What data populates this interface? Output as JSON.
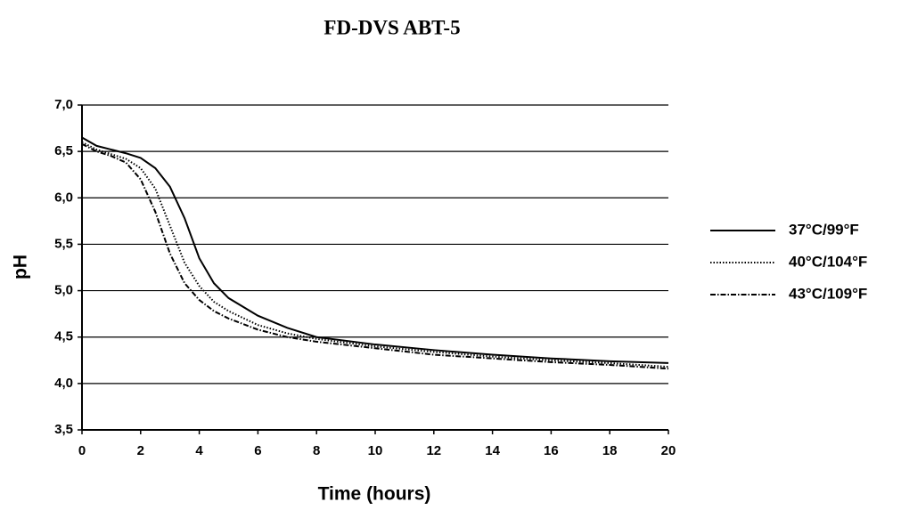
{
  "chart_data": {
    "type": "line",
    "title": "FD-DVS ABT-5",
    "x_label": "Time (hours)",
    "y_label": "pH",
    "x": [
      0,
      0.5,
      1,
      1.5,
      2,
      2.5,
      3,
      3.5,
      4,
      4.5,
      5,
      6,
      7,
      8,
      10,
      12,
      14,
      16,
      18,
      20
    ],
    "series": [
      {
        "name": "37°C/99°F",
        "color": "#000000",
        "style": "solid",
        "values": [
          6.65,
          6.56,
          6.52,
          6.48,
          6.43,
          6.32,
          6.12,
          5.78,
          5.35,
          5.08,
          4.92,
          4.73,
          4.6,
          4.5,
          4.42,
          4.36,
          4.31,
          4.27,
          4.24,
          4.22
        ]
      },
      {
        "name": "40°C/104°F",
        "color": "#000000",
        "style": "dotted",
        "values": [
          6.6,
          6.52,
          6.47,
          6.42,
          6.32,
          6.1,
          5.7,
          5.3,
          5.05,
          4.88,
          4.78,
          4.63,
          4.54,
          4.48,
          4.4,
          4.34,
          4.29,
          4.25,
          4.22,
          4.18
        ]
      },
      {
        "name": "43°C/109°F",
        "color": "#000000",
        "style": "dashdot",
        "values": [
          6.58,
          6.5,
          6.45,
          6.38,
          6.2,
          5.85,
          5.4,
          5.08,
          4.9,
          4.78,
          4.7,
          4.58,
          4.5,
          4.45,
          4.38,
          4.31,
          4.27,
          4.23,
          4.2,
          4.16
        ]
      }
    ],
    "xlim": [
      0,
      20
    ],
    "xticks": [
      0,
      2,
      4,
      6,
      8,
      10,
      12,
      14,
      16,
      18,
      20
    ],
    "ylim": [
      3.5,
      7
    ],
    "yticks": [
      {
        "value": 3.5,
        "label": "3,5"
      },
      {
        "value": 4,
        "label": "4,0"
      },
      {
        "value": 4.5,
        "label": "4,5"
      },
      {
        "value": 5,
        "label": "5,0"
      },
      {
        "value": 5.5,
        "label": "5,5"
      },
      {
        "value": 6,
        "label": "6,0"
      },
      {
        "value": 6.5,
        "label": "6,5"
      },
      {
        "value": 7,
        "label": "7,0"
      }
    ],
    "grid": true,
    "legend": "right"
  }
}
